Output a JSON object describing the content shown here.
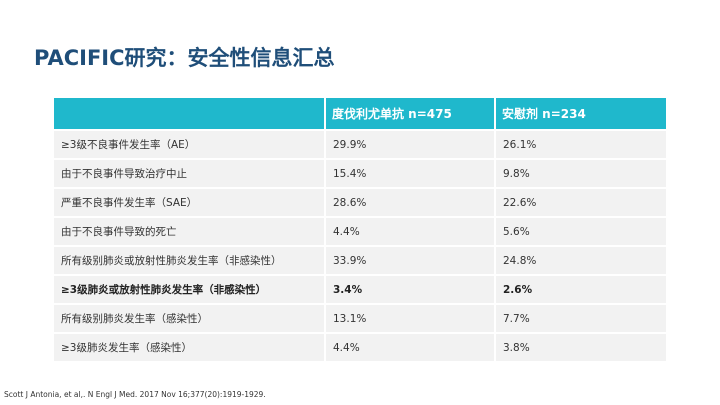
{
  "slide": {
    "title": "PACIFIC研究：安全性信息汇总",
    "footnote": "Scott J Antonia, et al,. N Engl J Med. 2017 Nov 16;377(20):1919-1929."
  },
  "table": {
    "headers": [
      "",
      "度伐利尤单抗 n=475",
      "安慰剂 n=234"
    ],
    "rows": [
      {
        "label": "≥3级不良事件发生率（AE）",
        "durvalumab": "29.9%",
        "placebo": "26.1%",
        "bold": false
      },
      {
        "label": "由于不良事件导致治疗中止",
        "durvalumab": "15.4%",
        "placebo": "9.8%",
        "bold": false
      },
      {
        "label": "严重不良事件发生率（SAE）",
        "durvalumab": "28.6%",
        "placebo": "22.6%",
        "bold": false
      },
      {
        "label": "由于不良事件导致的死亡",
        "durvalumab": "4.4%",
        "placebo": "5.6%",
        "bold": false
      },
      {
        "label": "所有级别肺炎或放射性肺炎发生率（非感染性）",
        "durvalumab": "33.9%",
        "placebo": "24.8%",
        "bold": false
      },
      {
        "label": "≥3级肺炎或放射性肺炎发生率（非感染性）",
        "durvalumab": "3.4%",
        "placebo": "2.6%",
        "bold": true
      },
      {
        "label": "所有级别肺炎发生率（感染性）",
        "durvalumab": "13.1%",
        "placebo": "7.7%",
        "bold": false
      },
      {
        "label": "≥3级肺炎发生率（感染性）",
        "durvalumab": "4.4%",
        "placebo": "3.8%",
        "bold": false
      }
    ]
  },
  "colors": {
    "title": "#1f4e79",
    "header_bg": "#1fb8cc",
    "row_bg": "#f2f2f2"
  }
}
